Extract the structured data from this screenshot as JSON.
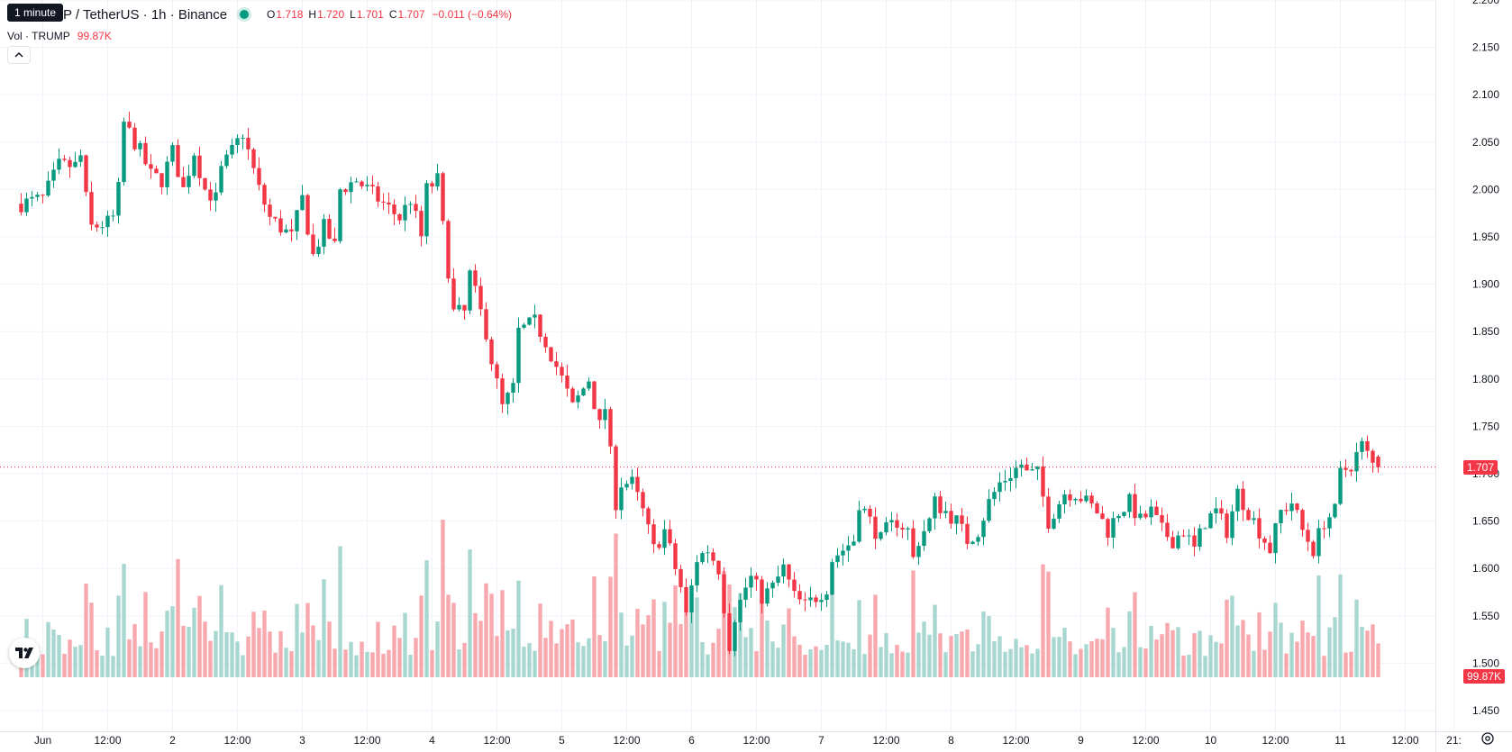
{
  "tooltip": "1 minute",
  "legend": {
    "symbol": "P / TetherUS · 1h · Binance",
    "open_label": "O",
    "open": "1.718",
    "high_label": "H",
    "high": "1.720",
    "low_label": "L",
    "low": "1.701",
    "close_label": "C",
    "close": "1.707",
    "change": "−0.011 (−0.64%)",
    "volume_label": "Vol · TRUMP",
    "volume": "99.87K"
  },
  "current_price_tag": "1.707",
  "current_volume_tag": "99.87K",
  "colors": {
    "up": "#089981",
    "down": "#f23645",
    "vol_up": "#a7d7d0",
    "vol_down": "#f7a9ae",
    "grid": "#f0f3fa"
  },
  "chart_data": {
    "type": "candlestick",
    "interval": "1h",
    "y_axis": {
      "range": [
        1.45,
        2.2
      ],
      "ticks": [
        "2.200",
        "2.150",
        "2.100",
        "2.050",
        "2.000",
        "1.950",
        "1.900",
        "1.850",
        "1.800",
        "1.750",
        "1.700",
        "1.650",
        "1.600",
        "1.550",
        "1.500",
        "1.450"
      ],
      "position": "right"
    },
    "x_axis": {
      "start": "2025-06-01T00:00",
      "ticks": [
        {
          "label": "Jun",
          "hours": 0
        },
        {
          "label": "12:00",
          "hours": 12
        },
        {
          "label": "2",
          "hours": 24
        },
        {
          "label": "12:00",
          "hours": 36
        },
        {
          "label": "3",
          "hours": 48
        },
        {
          "label": "12:00",
          "hours": 60
        },
        {
          "label": "4",
          "hours": 72
        },
        {
          "label": "12:00",
          "hours": 84
        },
        {
          "label": "5",
          "hours": 96
        },
        {
          "label": "12:00",
          "hours": 108
        },
        {
          "label": "6",
          "hours": 120
        },
        {
          "label": "12:00",
          "hours": 132
        },
        {
          "label": "7",
          "hours": 144
        },
        {
          "label": "12:00",
          "hours": 156
        },
        {
          "label": "8",
          "hours": 168
        },
        {
          "label": "12:00",
          "hours": 180
        },
        {
          "label": "9",
          "hours": 192
        },
        {
          "label": "12:00",
          "hours": 204
        },
        {
          "label": "10",
          "hours": 216
        },
        {
          "label": "12:00",
          "hours": 228
        },
        {
          "label": "11",
          "hours": 240
        },
        {
          "label": "12:00",
          "hours": 252
        },
        {
          "label": "21:",
          "hours": 261
        }
      ]
    },
    "last_price": 1.707,
    "anchors": [
      [
        -4,
        1.985
      ],
      [
        0,
        1.99
      ],
      [
        3,
        2.025
      ],
      [
        6,
        2.025
      ],
      [
        7,
        2.035
      ],
      [
        8,
        1.99
      ],
      [
        9,
        1.96
      ],
      [
        12,
        1.965
      ],
      [
        13,
        1.97
      ],
      [
        14,
        2.0
      ],
      [
        15,
        2.07
      ],
      [
        18,
        2.04
      ],
      [
        20,
        2.015
      ],
      [
        22,
        2.01
      ],
      [
        24,
        2.04
      ],
      [
        26,
        2.0
      ],
      [
        28,
        2.04
      ],
      [
        30,
        2.0
      ],
      [
        32,
        1.99
      ],
      [
        33,
        2.02
      ],
      [
        35,
        2.04
      ],
      [
        37,
        2.06
      ],
      [
        40,
        2.0
      ],
      [
        42,
        1.97
      ],
      [
        44,
        1.96
      ],
      [
        46,
        1.95
      ],
      [
        48,
        1.99
      ],
      [
        50,
        1.93
      ],
      [
        52,
        1.96
      ],
      [
        54,
        1.94
      ],
      [
        55,
        2.0
      ],
      [
        58,
        2.01
      ],
      [
        60,
        2.0
      ],
      [
        64,
        1.98
      ],
      [
        66,
        1.97
      ],
      [
        68,
        1.99
      ],
      [
        70,
        1.95
      ],
      [
        71,
        2.0
      ],
      [
        73,
        2.01
      ],
      [
        74,
        1.96
      ],
      [
        76,
        1.87
      ],
      [
        78,
        1.87
      ],
      [
        79,
        1.91
      ],
      [
        80,
        1.89
      ],
      [
        82,
        1.85
      ],
      [
        83,
        1.82
      ],
      [
        85,
        1.77
      ],
      [
        87,
        1.79
      ],
      [
        88,
        1.85
      ],
      [
        91,
        1.86
      ],
      [
        93,
        1.84
      ],
      [
        96,
        1.8
      ],
      [
        98,
        1.77
      ],
      [
        101,
        1.8
      ],
      [
        103,
        1.75
      ],
      [
        104,
        1.77
      ],
      [
        105,
        1.72
      ],
      [
        106,
        1.67
      ],
      [
        107,
        1.69
      ],
      [
        109,
        1.69
      ],
      [
        111,
        1.66
      ],
      [
        112,
        1.64
      ],
      [
        113,
        1.62
      ],
      [
        115,
        1.64
      ],
      [
        117,
        1.6
      ],
      [
        118,
        1.58
      ],
      [
        119,
        1.55
      ],
      [
        120,
        1.58
      ],
      [
        121,
        1.61
      ],
      [
        123,
        1.62
      ],
      [
        125,
        1.6
      ],
      [
        127,
        1.52
      ],
      [
        128,
        1.55
      ],
      [
        130,
        1.58
      ],
      [
        131,
        1.59
      ],
      [
        133,
        1.57
      ],
      [
        135,
        1.58
      ],
      [
        137,
        1.6
      ],
      [
        139,
        1.57
      ],
      [
        141,
        1.56
      ],
      [
        143,
        1.57
      ],
      [
        145,
        1.58
      ],
      [
        146,
        1.61
      ],
      [
        148,
        1.62
      ],
      [
        150,
        1.63
      ],
      [
        151,
        1.67
      ],
      [
        153,
        1.65
      ],
      [
        155,
        1.63
      ],
      [
        156,
        1.64
      ],
      [
        158,
        1.65
      ],
      [
        160,
        1.64
      ],
      [
        161,
        1.61
      ],
      [
        162,
        1.63
      ],
      [
        164,
        1.65
      ],
      [
        165,
        1.67
      ],
      [
        167,
        1.66
      ],
      [
        169,
        1.65
      ],
      [
        171,
        1.63
      ],
      [
        173,
        1.64
      ],
      [
        175,
        1.67
      ],
      [
        177,
        1.69
      ],
      [
        179,
        1.7
      ],
      [
        181,
        1.71
      ],
      [
        182,
        1.7
      ],
      [
        184,
        1.7
      ],
      [
        186,
        1.65
      ],
      [
        189,
        1.68
      ],
      [
        191,
        1.68
      ],
      [
        193,
        1.67
      ],
      [
        195,
        1.66
      ],
      [
        197,
        1.64
      ],
      [
        199,
        1.66
      ],
      [
        201,
        1.67
      ],
      [
        203,
        1.65
      ],
      [
        205,
        1.66
      ],
      [
        207,
        1.64
      ],
      [
        209,
        1.63
      ],
      [
        211,
        1.64
      ],
      [
        213,
        1.62
      ],
      [
        215,
        1.65
      ],
      [
        217,
        1.66
      ],
      [
        219,
        1.64
      ],
      [
        221,
        1.68
      ],
      [
        223,
        1.66
      ],
      [
        225,
        1.64
      ],
      [
        227,
        1.62
      ],
      [
        229,
        1.66
      ],
      [
        231,
        1.67
      ],
      [
        233,
        1.64
      ],
      [
        235,
        1.62
      ],
      [
        237,
        1.65
      ],
      [
        239,
        1.66
      ],
      [
        240,
        1.7
      ],
      [
        242,
        1.71
      ],
      [
        244,
        1.73
      ],
      [
        245,
        1.72
      ],
      [
        246,
        1.71
      ],
      [
        247,
        1.707
      ]
    ]
  }
}
